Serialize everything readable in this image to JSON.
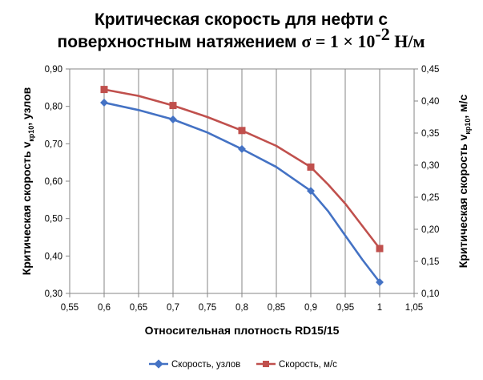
{
  "chart_data": {
    "type": "line",
    "title": {
      "line1": "Критическая скорость для нефти с",
      "line2_main": "поверхностным натяжением ",
      "line2_formula": "σ = 1 × 10",
      "line2_exp": "-2",
      "line2_unit": " Н/м"
    },
    "xlabel": "Относительная плотность RD15/15",
    "ylabel_left": {
      "main": "Критическая скорость v",
      "sub": "кр10",
      "rest": ", узлов"
    },
    "ylabel_right": {
      "main": "Критическая скорость v",
      "sub": "кр10",
      "rest": ", м/с"
    },
    "xlim": [
      0.55,
      1.05
    ],
    "ylim_left": [
      0.3,
      0.9
    ],
    "ylim_right": [
      0.1,
      0.45
    ],
    "x_ticks": [
      "0,55",
      "0,6",
      "0,65",
      "0,7",
      "0,75",
      "0,8",
      "0,85",
      "0,9",
      "0,95",
      "1",
      "1,05"
    ],
    "y_left_ticks": [
      "0,30",
      "0,40",
      "0,50",
      "0,60",
      "0,70",
      "0,80",
      "0,90"
    ],
    "y_right_ticks": [
      "0,10",
      "0,15",
      "0,20",
      "0,25",
      "0,30",
      "0,35",
      "0,40",
      "0,45"
    ],
    "grid": "vertical",
    "legend_position": "bottom",
    "series": [
      {
        "name": "Скорость, узлов",
        "axis": "left",
        "color": "#4472C4",
        "marker": "diamond",
        "points": [
          [
            0.6,
            0.81
          ],
          [
            0.7,
            0.765
          ],
          [
            0.8,
            0.686
          ],
          [
            0.9,
            0.574
          ],
          [
            1.0,
            0.33
          ]
        ],
        "curve": [
          [
            0.6,
            0.81
          ],
          [
            0.65,
            0.79
          ],
          [
            0.7,
            0.765
          ],
          [
            0.75,
            0.73
          ],
          [
            0.8,
            0.686
          ],
          [
            0.85,
            0.638
          ],
          [
            0.9,
            0.574
          ],
          [
            0.925,
            0.52
          ],
          [
            0.95,
            0.455
          ],
          [
            0.975,
            0.39
          ],
          [
            1.0,
            0.33
          ]
        ]
      },
      {
        "name": "Скорость, м/с",
        "axis": "right",
        "color": "#C0504D",
        "marker": "square",
        "points": [
          [
            0.6,
            0.418
          ],
          [
            0.7,
            0.393
          ],
          [
            0.8,
            0.354
          ],
          [
            0.9,
            0.297
          ],
          [
            1.0,
            0.17
          ]
        ],
        "curve": [
          [
            0.6,
            0.418
          ],
          [
            0.65,
            0.408
          ],
          [
            0.7,
            0.393
          ],
          [
            0.75,
            0.375
          ],
          [
            0.8,
            0.354
          ],
          [
            0.85,
            0.33
          ],
          [
            0.9,
            0.297
          ],
          [
            0.925,
            0.27
          ],
          [
            0.95,
            0.24
          ],
          [
            0.975,
            0.205
          ],
          [
            1.0,
            0.17
          ]
        ]
      }
    ]
  }
}
